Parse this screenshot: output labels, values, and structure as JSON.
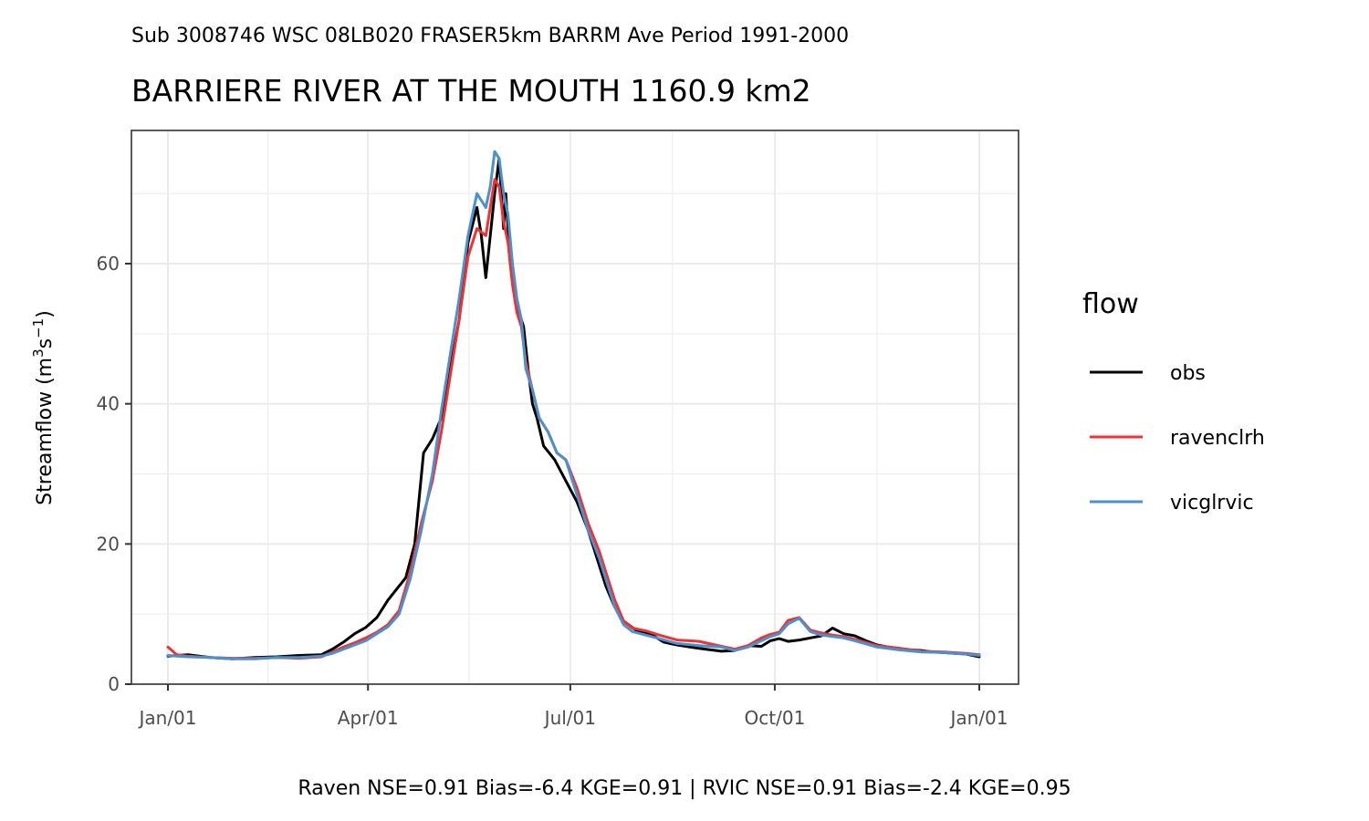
{
  "chart_data": {
    "type": "line",
    "subtitle": "Sub 3008746 WSC 08LB020 FRASER5km BARRM Ave Period 1991-2000",
    "title": "BARRIERE RIVER AT THE MOUTH 1160.9 km2",
    "ylabel_main": "Streamflow (m",
    "ylabel_sup1": "3",
    "ylabel_mid": "s",
    "ylabel_sup2": "−1",
    "ylabel_end": ")",
    "xlabel": "",
    "caption": "Raven NSE=0.91 Bias=-6.4 KGE=0.91 | RVIC NSE=0.91 Bias=-2.4 KGE=0.95",
    "x_unit": "day of year",
    "xlim": [
      1,
      366
    ],
    "ylim": [
      0,
      79
    ],
    "x_ticks": [
      {
        "label": "Jan/01",
        "day": 1
      },
      {
        "label": "Apr/01",
        "day": 91
      },
      {
        "label": "Jul/01",
        "day": 182
      },
      {
        "label": "Oct/01",
        "day": 274
      },
      {
        "label": "Jan/01",
        "day": 366
      }
    ],
    "x_minor_days": [
      46,
      136.5,
      228,
      320
    ],
    "y_ticks": [
      0,
      20,
      40,
      60
    ],
    "y_minor": [
      10,
      30,
      50,
      70
    ],
    "grid": true,
    "legend": {
      "title": "flow",
      "position": "right"
    },
    "series": [
      {
        "name": "obs",
        "color": "#000000",
        "x": [
          1,
          10,
          20,
          30,
          40,
          50,
          60,
          70,
          75,
          80,
          85,
          90,
          95,
          100,
          105,
          108,
          112,
          116,
          120,
          124,
          128,
          132,
          136,
          140,
          142,
          144,
          146,
          148,
          150,
          152,
          153,
          155,
          157,
          159,
          161,
          163,
          165,
          167,
          170,
          175,
          180,
          185,
          190,
          195,
          198,
          202,
          206,
          212,
          218,
          224,
          230,
          240,
          250,
          256,
          262,
          268,
          272,
          276,
          280,
          285,
          290,
          295,
          300,
          305,
          310,
          315,
          320,
          325,
          330,
          335,
          340,
          345,
          350,
          355,
          360,
          366
        ],
        "y": [
          4,
          4.2,
          3.8,
          3.6,
          3.8,
          3.9,
          4.1,
          4.2,
          5,
          6,
          7.2,
          8.1,
          9.5,
          12,
          14,
          15.2,
          20,
          33,
          35,
          38,
          45,
          52,
          63,
          68,
          64,
          58,
          64,
          70,
          75,
          65,
          70,
          60,
          56,
          53,
          51,
          45,
          40,
          38,
          34,
          32,
          29,
          26,
          22,
          17,
          14,
          11,
          9,
          7.6,
          7.2,
          6,
          5.6,
          5.1,
          4.7,
          4.8,
          5.5,
          5.4,
          6.2,
          6.5,
          6.1,
          6.3,
          6.6,
          6.9,
          8,
          7.2,
          6.9,
          6.2,
          5.6,
          5.3,
          5.1,
          4.9,
          4.8,
          4.6,
          4.5,
          4.4,
          4.3,
          3.9
        ]
      },
      {
        "name": "ravenclrh",
        "color": "#f03232",
        "x": [
          1,
          5,
          10,
          20,
          30,
          40,
          50,
          60,
          70,
          75,
          80,
          85,
          90,
          95,
          100,
          105,
          110,
          115,
          120,
          124,
          128,
          132,
          136,
          140,
          144,
          146,
          148,
          150,
          152,
          154,
          156,
          158,
          160,
          162,
          165,
          168,
          172,
          176,
          180,
          185,
          190,
          195,
          198,
          202,
          206,
          210,
          216,
          222,
          230,
          240,
          250,
          256,
          262,
          268,
          272,
          276,
          280,
          285,
          290,
          295,
          300,
          305,
          310,
          320,
          330,
          340,
          350,
          360,
          366
        ],
        "y": [
          5.3,
          4.2,
          4,
          3.8,
          3.7,
          3.7,
          3.8,
          3.7,
          3.9,
          4.6,
          5.3,
          5.9,
          6.6,
          7.4,
          8.5,
          10.5,
          16,
          23,
          29,
          36,
          44,
          52,
          61,
          65,
          64,
          68,
          72,
          71,
          66,
          63,
          57,
          53,
          51,
          46,
          42,
          38,
          36,
          33,
          32,
          28,
          23,
          19,
          16,
          12,
          9,
          8,
          7.6,
          7,
          6.3,
          6.1,
          5.4,
          5,
          5.5,
          6.6,
          7.1,
          7.4,
          9.1,
          9.5,
          7.7,
          7.3,
          7,
          6.8,
          6.4,
          5.5,
          5.1,
          4.7,
          4.6,
          4.4,
          4.2
        ]
      },
      {
        "name": "vicglrvic",
        "color": "#4b91cd",
        "x": [
          1,
          5,
          10,
          20,
          30,
          40,
          50,
          60,
          70,
          75,
          80,
          85,
          90,
          95,
          100,
          105,
          110,
          115,
          120,
          124,
          128,
          132,
          136,
          140,
          144,
          146,
          148,
          150,
          152,
          154,
          156,
          158,
          160,
          162,
          165,
          168,
          172,
          176,
          180,
          185,
          190,
          195,
          198,
          202,
          206,
          210,
          216,
          222,
          230,
          240,
          250,
          256,
          262,
          268,
          272,
          276,
          280,
          285,
          290,
          295,
          300,
          305,
          310,
          320,
          330,
          340,
          350,
          360,
          366
        ],
        "y": [
          4.1,
          4,
          3.9,
          3.8,
          3.6,
          3.6,
          3.8,
          3.8,
          4,
          4.4,
          5,
          5.6,
          6.2,
          7.2,
          8.2,
          10,
          15,
          22,
          30,
          39,
          47,
          55,
          64,
          70,
          68,
          71,
          76,
          75,
          70,
          67,
          60,
          55,
          52,
          45,
          42,
          38,
          36,
          33,
          32,
          27,
          22,
          18,
          15,
          11,
          8.5,
          7.5,
          7,
          6.5,
          5.8,
          5.5,
          5.3,
          4.8,
          5.3,
          6.2,
          6.8,
          7.2,
          8.6,
          9.4,
          7.5,
          7,
          6.8,
          6.6,
          6.2,
          5.3,
          4.9,
          4.6,
          4.5,
          4.3,
          4.1
        ]
      }
    ]
  }
}
